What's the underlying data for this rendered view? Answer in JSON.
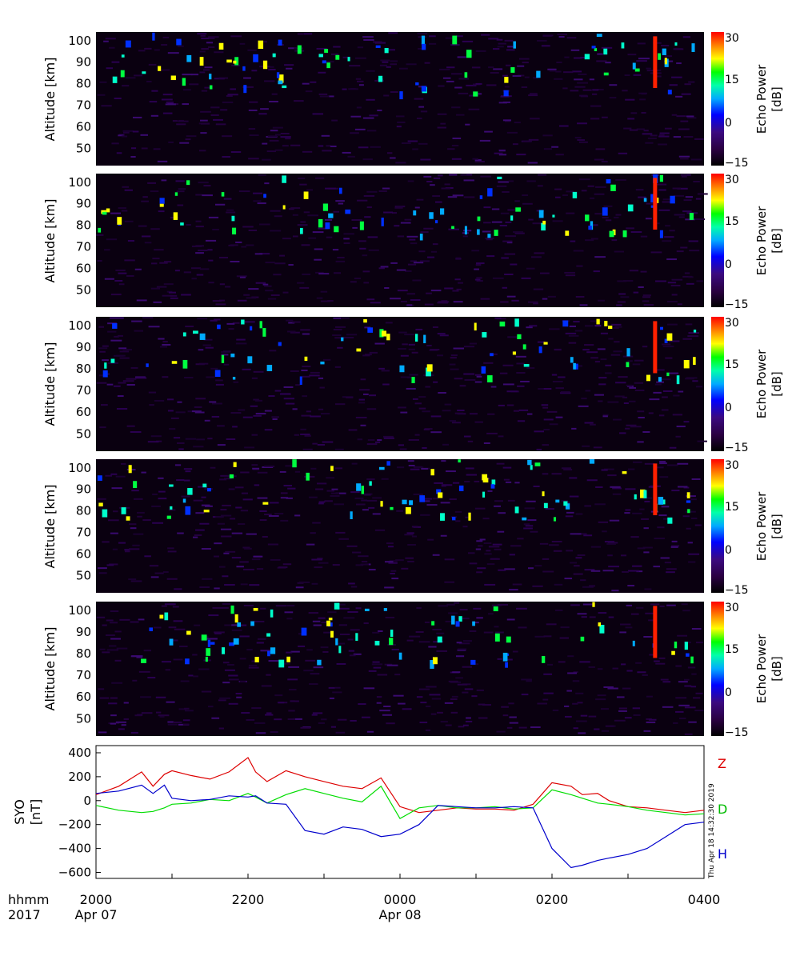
{
  "chart_data": [
    {
      "type": "heatmap",
      "panel": 1,
      "ylabel": "Altitude [km]",
      "yticks": [
        "100",
        "90",
        "80",
        "70",
        "60",
        "50"
      ],
      "ylim": [
        42,
        104
      ],
      "colorbar": {
        "label": "Echo Power",
        "unit": "[dB]",
        "ticks": [
          "30",
          "15",
          "0",
          "−15"
        ],
        "range": [
          -18,
          33
        ]
      }
    },
    {
      "type": "heatmap",
      "panel": 2,
      "ylabel": "Altitude [km]",
      "yticks": [
        "100",
        "90",
        "80",
        "70",
        "60",
        "50"
      ],
      "ylim": [
        42,
        104
      ],
      "colorbar": {
        "label": "Echo Power",
        "unit": "[dB]",
        "ticks": [
          "30",
          "15",
          "0",
          "−15"
        ],
        "range": [
          -18,
          33
        ]
      }
    },
    {
      "type": "heatmap",
      "panel": 3,
      "ylabel": "Altitude [km]",
      "yticks": [
        "100",
        "90",
        "80",
        "70",
        "60",
        "50"
      ],
      "ylim": [
        42,
        104
      ],
      "colorbar": {
        "label": "Echo Power",
        "unit": "[dB]",
        "ticks": [
          "30",
          "15",
          "0",
          "−15"
        ],
        "range": [
          -18,
          33
        ]
      }
    },
    {
      "type": "heatmap",
      "panel": 4,
      "ylabel": "Altitude [km]",
      "yticks": [
        "100",
        "90",
        "80",
        "70",
        "60",
        "50"
      ],
      "ylim": [
        42,
        104
      ],
      "colorbar": {
        "label": "Echo Power",
        "unit": "[dB]",
        "ticks": [
          "30",
          "15",
          "0",
          "−15"
        ],
        "range": [
          -18,
          33
        ]
      }
    },
    {
      "type": "heatmap",
      "panel": 5,
      "ylabel": "Altitude [km]",
      "yticks": [
        "100",
        "90",
        "80",
        "70",
        "60",
        "50"
      ],
      "ylim": [
        42,
        104
      ],
      "colorbar": {
        "label": "Echo Power",
        "unit": "[dB]",
        "ticks": [
          "30",
          "15",
          "0",
          "−15"
        ],
        "range": [
          -18,
          33
        ]
      }
    },
    {
      "type": "line",
      "panel": 6,
      "ylabel": "SYO [nT]",
      "ylim": [
        -650,
        460
      ],
      "yticks": [
        "400",
        "200",
        "0",
        "−200",
        "−400",
        "−600"
      ],
      "x_hours": [
        0,
        0.3,
        0.6,
        0.75,
        0.9,
        1.0,
        1.25,
        1.5,
        1.75,
        2.0,
        2.1,
        2.25,
        2.5,
        2.75,
        3.0,
        3.25,
        3.5,
        3.75,
        4.0,
        4.25,
        4.5,
        4.75,
        5.0,
        5.25,
        5.5,
        5.75,
        6.0,
        6.25,
        6.4,
        6.6,
        6.75,
        7.0,
        7.25,
        7.5,
        7.75,
        8.0
      ],
      "series": [
        {
          "name": "Z",
          "color": "#dd0000",
          "values": [
            50,
            120,
            240,
            120,
            220,
            250,
            210,
            180,
            240,
            360,
            240,
            160,
            250,
            200,
            160,
            120,
            100,
            190,
            -50,
            -100,
            -80,
            -60,
            -70,
            -70,
            -80,
            -30,
            150,
            120,
            50,
            60,
            0,
            -50,
            -60,
            -80,
            -100,
            -80
          ]
        },
        {
          "name": "D",
          "color": "#00dd00",
          "values": [
            -40,
            -80,
            -100,
            -90,
            -60,
            -30,
            -20,
            10,
            0,
            60,
            30,
            -20,
            50,
            100,
            60,
            20,
            -10,
            120,
            -150,
            -60,
            -40,
            -60,
            -60,
            -50,
            -70,
            -60,
            90,
            50,
            20,
            -20,
            -30,
            -50,
            -80,
            -100,
            -120,
            -110
          ]
        },
        {
          "name": "H",
          "color": "#0000cc",
          "values": [
            60,
            80,
            130,
            60,
            130,
            20,
            0,
            10,
            40,
            30,
            40,
            -20,
            -30,
            -250,
            -280,
            -220,
            -240,
            -300,
            -280,
            -200,
            -40,
            -50,
            -60,
            -60,
            -50,
            -60,
            -400,
            -560,
            -540,
            -500,
            -480,
            -450,
            -400,
            -300,
            -200,
            -180
          ]
        }
      ]
    }
  ],
  "time_axis": {
    "label_line1": "hhmm",
    "label_line2": "2017",
    "ticks": [
      {
        "hour": 0,
        "time": "2000",
        "date": "Apr 07"
      },
      {
        "hour": 2,
        "time": "2200",
        "date": ""
      },
      {
        "hour": 4,
        "time": "0000",
        "date": "Apr 08"
      },
      {
        "hour": 6,
        "time": "0200",
        "date": ""
      },
      {
        "hour": 8,
        "time": "0400",
        "date": ""
      }
    ]
  },
  "timestamp": "Thu Apr 18 14:32:30 2019",
  "colors": {
    "background": "#000000",
    "accent_z": "#dd0000",
    "accent_d": "#00dd00",
    "accent_h": "#0000cc"
  }
}
